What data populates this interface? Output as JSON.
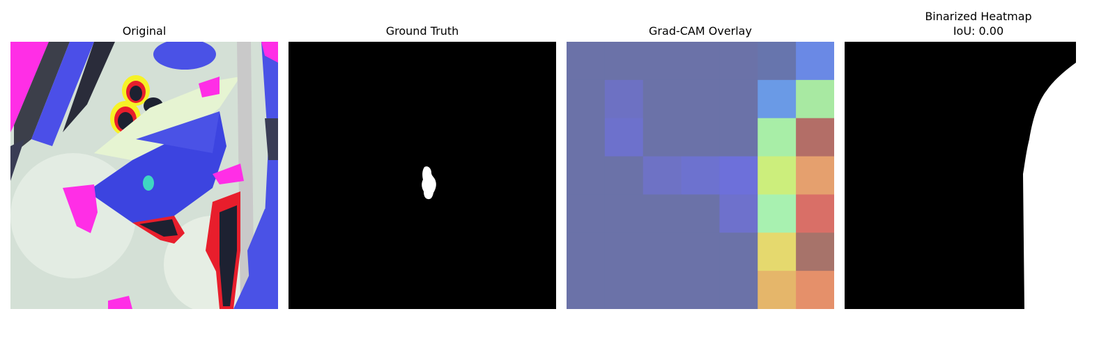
{
  "panels": [
    {
      "title": "Original"
    },
    {
      "title": "Ground Truth"
    },
    {
      "title": "Grad-CAM Overlay"
    },
    {
      "title": "Binarized Heatmap",
      "subtitle": "IoU: 0.00"
    }
  ],
  "gradcam": {
    "grid_size": 7,
    "cells": [
      [
        "#6b72a8",
        "#6b72a8",
        "#6b72a8",
        "#6b72a8",
        "#6b72a8",
        "#6775ad",
        "#6a89e5"
      ],
      [
        "#6b72a8",
        "#6d71c3",
        "#6b72a8",
        "#6b72a8",
        "#6b72a8",
        "#6a9ae6",
        "#a8e9a2"
      ],
      [
        "#6b72a8",
        "#6d71cc",
        "#6b72a8",
        "#6b72a8",
        "#6b72a8",
        "#a8eea7",
        "#b36e67"
      ],
      [
        "#6b72a8",
        "#6b72a8",
        "#6e72c5",
        "#6d72cf",
        "#6d70da",
        "#ccee7c",
        "#e5a06e"
      ],
      [
        "#6b72a8",
        "#6b72a8",
        "#6b72a8",
        "#6b72a8",
        "#6e71cc",
        "#a8f1b0",
        "#d96f67"
      ],
      [
        "#6b72a8",
        "#6b72a8",
        "#6b72a8",
        "#6b72a8",
        "#6b72a8",
        "#e5d96e",
        "#a7736a"
      ],
      [
        "#6b72a8",
        "#6b72a8",
        "#6b72a8",
        "#6b72a8",
        "#6b72a8",
        "#e5b66a",
        "#e5906a"
      ]
    ]
  }
}
